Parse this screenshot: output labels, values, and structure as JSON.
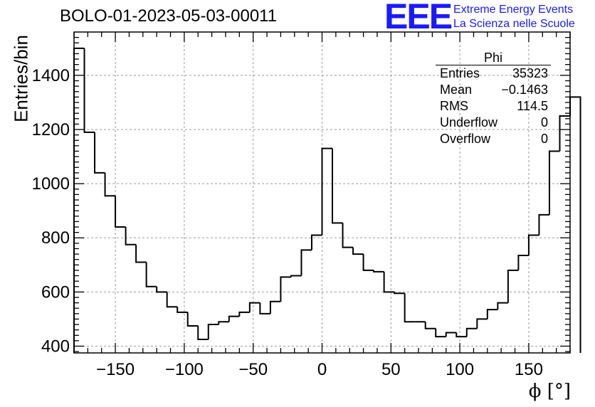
{
  "chart_data": {
    "type": "histogram",
    "title": "BOLO-01-2023-05-03-00011",
    "xlabel": "ϕ [°]",
    "ylabel": "Entries/bin",
    "xlim": [
      -180,
      180
    ],
    "ylim": [
      375,
      1560
    ],
    "xticks": [
      -150,
      -100,
      -50,
      0,
      50,
      100,
      150
    ],
    "xtick_labels": [
      "−150",
      "−100",
      "−50",
      "0",
      "50",
      "100",
      "150"
    ],
    "yticks": [
      400,
      600,
      800,
      1000,
      1200,
      1400
    ],
    "ytick_labels": [
      "400",
      "600",
      "800",
      "1000",
      "1200",
      "1400"
    ],
    "grid": true,
    "bin_edges_start": -180,
    "bin_width": 7.5,
    "values": [
      1500,
      1190,
      1040,
      955,
      840,
      775,
      710,
      620,
      600,
      545,
      525,
      475,
      425,
      480,
      490,
      510,
      525,
      560,
      520,
      565,
      655,
      660,
      755,
      810,
      1130,
      855,
      765,
      740,
      680,
      675,
      600,
      595,
      490,
      490,
      465,
      435,
      450,
      435,
      465,
      500,
      535,
      560,
      680,
      735,
      810,
      885,
      1120,
      1250,
      1320
    ],
    "line_color": "#000000",
    "stats": {
      "title": "Phi",
      "rows": [
        {
          "label": "Entries",
          "value": "35323"
        },
        {
          "label": "Mean",
          "value": "−0.1463"
        },
        {
          "label": "RMS",
          "value": "114.5"
        },
        {
          "label": "Underflow",
          "value": "0"
        },
        {
          "label": "Overflow",
          "value": "0"
        }
      ]
    }
  },
  "logo": {
    "mark": "EEE",
    "line1": "Extreme Energy Events",
    "line2": "La Scienza nelle Scuole",
    "color": "#1a1aff"
  }
}
